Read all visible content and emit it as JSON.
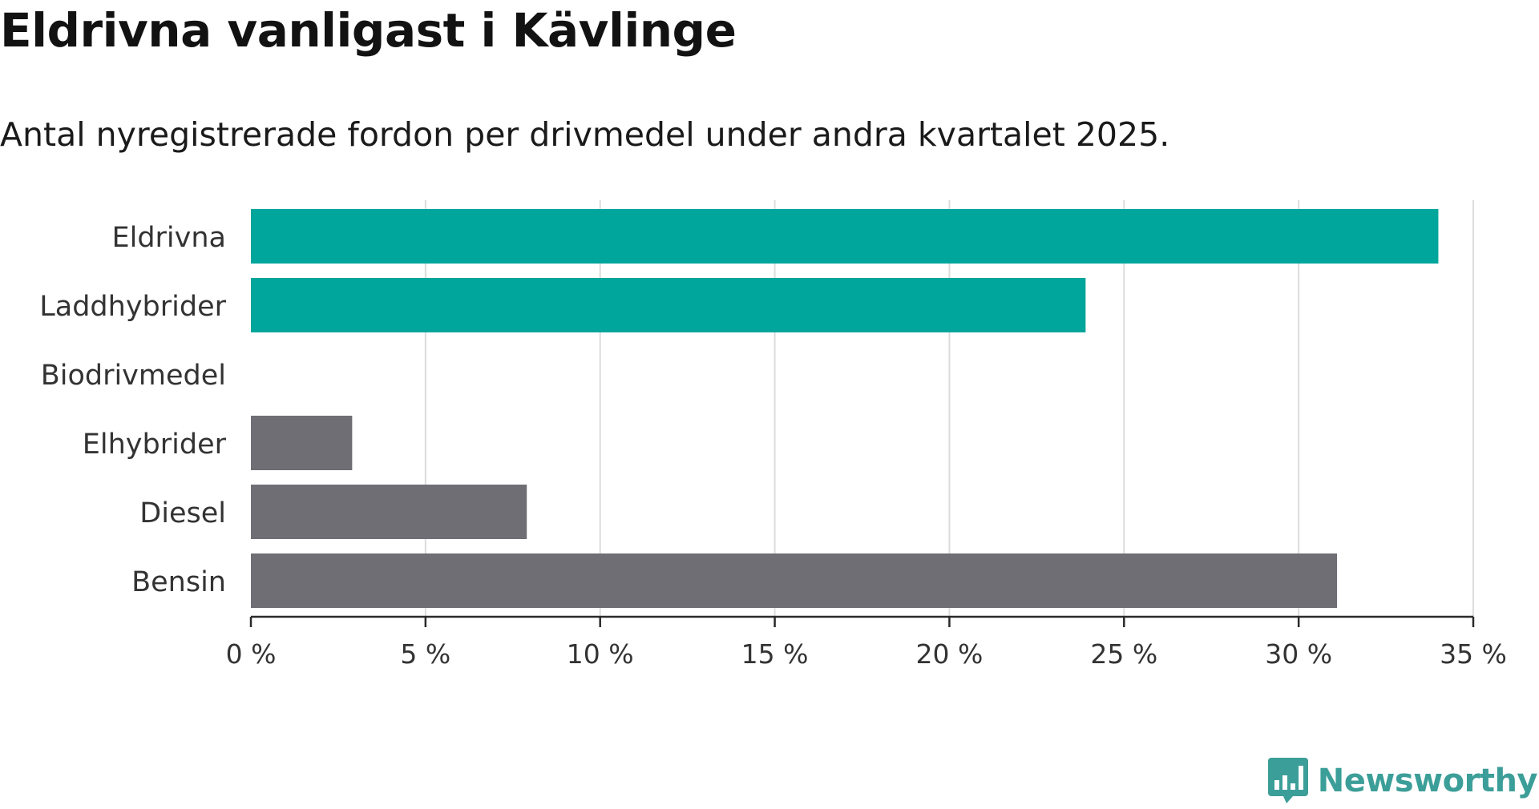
{
  "header": {
    "title": "Eldrivna vanligast i Kävlinge",
    "subtitle": "Antal nyregistrerade fordon per drivmedel under andra kvartalet 2025."
  },
  "chart_data": {
    "type": "bar",
    "orientation": "horizontal",
    "title": "Eldrivna vanligast i Kävlinge",
    "subtitle": "Antal nyregistrerade fordon per drivmedel under andra kvartalet 2025.",
    "xlabel": "",
    "ylabel": "",
    "categories": [
      "Eldrivna",
      "Laddhybrider",
      "Biodrivmedel",
      "Elhybrider",
      "Diesel",
      "Bensin"
    ],
    "values": [
      34.0,
      23.9,
      0,
      2.9,
      7.9,
      31.1
    ],
    "bar_colors": [
      "#00a59b",
      "#00a59b",
      "#00a59b",
      "#6e6e74",
      "#6e6e74",
      "#6e6e74"
    ],
    "xlim": [
      0,
      35
    ],
    "xticks": [
      0,
      5,
      10,
      15,
      20,
      25,
      30,
      35
    ],
    "xtick_labels": [
      "0 %",
      "5 %",
      "10 %",
      "15 %",
      "20 %",
      "25 %",
      "30 %",
      "35 %"
    ],
    "grid": "vertical",
    "legend": "none"
  },
  "branding": {
    "logo_text": "Newsworthy",
    "logo_color": "#3c9e98",
    "logo_icon": "bar-chart-speech-bubble-icon"
  }
}
